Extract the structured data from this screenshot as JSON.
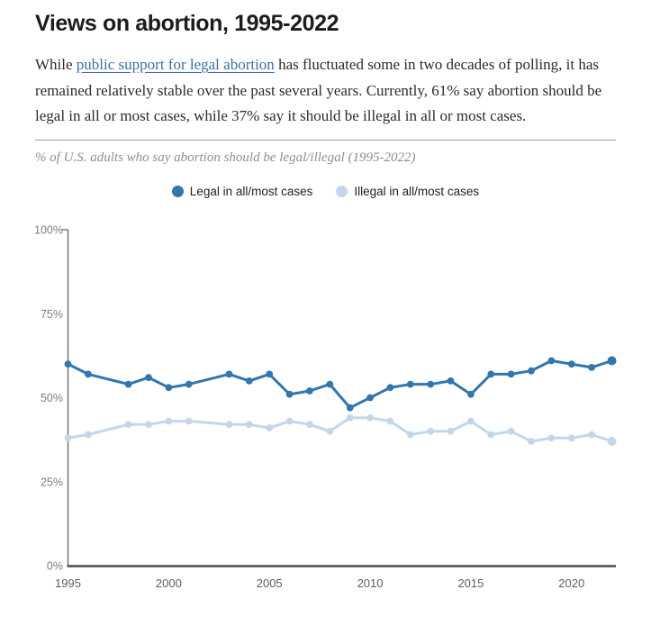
{
  "page": {
    "title": "Views on abortion, 1995-2022",
    "intro": {
      "pre_link": "While ",
      "link_text": "public support for legal abortion",
      "post_link": " has fluctuated some in two decades of polling, it has remained relatively stable over the past several years. Currently, 61% say abortion should be legal in all or most cases, while 37% say it should be illegal in all or most cases."
    }
  },
  "colors": {
    "legal_blue": "#3276ae",
    "illegal_blue": "#c3d7eb",
    "axis_line": "#4c4c4c",
    "y_axis_line": "#595959",
    "y_tick_label": "#7d7d7d",
    "x_tick_label": "#5e5e5e",
    "link_blue": "#3d6fa5"
  },
  "chart_data": {
    "type": "line",
    "title": "Views on abortion, 1995-2022",
    "subtitle": "% of U.S. adults who say abortion should be legal/illegal (1995-2022)",
    "x": [
      1995,
      1996,
      1998,
      1999,
      2000,
      2001,
      2003,
      2004,
      2005,
      2006,
      2007,
      2008,
      2009,
      2010,
      2011,
      2012,
      2013,
      2014,
      2015,
      2016,
      2017,
      2018,
      2019,
      2020,
      2021,
      2022
    ],
    "series": [
      {
        "name": "Legal in all/most cases",
        "color": "#3276ae",
        "values": [
          60,
          57,
          54,
          56,
          53,
          54,
          57,
          55,
          57,
          51,
          52,
          54,
          47,
          50,
          53,
          54,
          54,
          55,
          51,
          57,
          57,
          58,
          61,
          60,
          59,
          61
        ]
      },
      {
        "name": "Illegal in all/most cases",
        "color": "#c3d7eb",
        "values": [
          38,
          39,
          42,
          42,
          43,
          43,
          42,
          42,
          41,
          43,
          42,
          40,
          44,
          44,
          43,
          39,
          40,
          40,
          43,
          39,
          40,
          37,
          38,
          38,
          39,
          37
        ]
      }
    ],
    "xlabel": "",
    "ylabel": "",
    "ylim": [
      0,
      100
    ],
    "y_ticks": [
      0,
      25,
      50,
      75,
      100
    ],
    "y_tick_suffix": "%",
    "x_ticks": [
      1995,
      2000,
      2005,
      2010,
      2015,
      2020
    ],
    "grid": false,
    "legend_position": "top-center"
  }
}
